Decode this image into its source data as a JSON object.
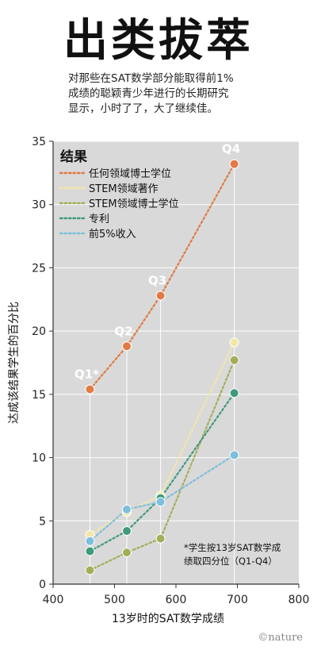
{
  "header": {
    "title": "出类拔萃",
    "subtitle_lines": [
      "对那些在SAT数学部分能取得前1%",
      "成绩的聪颖青少年进行的长期研究",
      "显示，小时了了，大了继续佳。"
    ]
  },
  "credit": "©nature",
  "chart_data": {
    "type": "line",
    "xlabel": "13岁时的SAT数学成绩",
    "ylabel": "达成该结果学生的百分比",
    "xlim": [
      400,
      800
    ],
    "ylim": [
      0,
      35
    ],
    "xticks": [
      400,
      500,
      600,
      700,
      800
    ],
    "yticks": [
      0,
      5,
      10,
      15,
      20,
      25,
      30,
      35
    ],
    "grid": true,
    "legend_title": "结果",
    "legend_position": "top-left",
    "x": [
      460,
      520,
      575,
      695
    ],
    "quartile_labels": [
      "Q1*",
      "Q2",
      "Q3",
      "Q4"
    ],
    "footnote_lines": [
      "*学生按13岁SAT数学成",
      "绩取四分位（Q1-Q4）"
    ],
    "series": [
      {
        "name": "任何领域博士学位",
        "color": "#e07b45",
        "values": [
          15.4,
          18.8,
          22.8,
          33.2
        ]
      },
      {
        "name": "STEM领域著作",
        "color": "#f3e7a8",
        "values": [
          3.9,
          5.7,
          7.0,
          19.1
        ]
      },
      {
        "name": "STEM领域博士学位",
        "color": "#a4ad58",
        "values": [
          1.1,
          2.5,
          3.6,
          17.7
        ]
      },
      {
        "name": "专利",
        "color": "#3f9a7c",
        "values": [
          2.6,
          4.2,
          6.8,
          15.1
        ]
      },
      {
        "name": "前5%收入",
        "color": "#7dbfdc",
        "values": [
          3.4,
          5.9,
          6.5,
          10.2
        ]
      }
    ]
  }
}
